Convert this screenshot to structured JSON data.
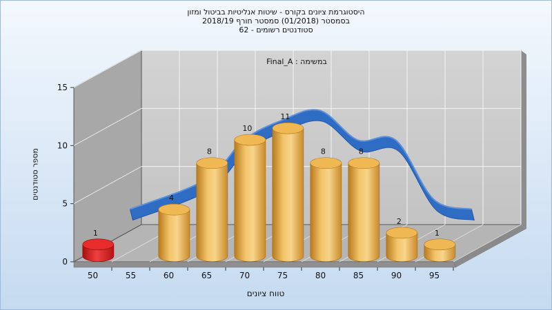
{
  "chart_data": {
    "type": "bar",
    "title": [
      "היסטוגרמת ציונים בקורס - שיטות אנליטיות בביטול ומזון",
      "בסמסטר  (01/2018)  סמסטר חורף 2018/19",
      "סטודנטים רשומים - 62"
    ],
    "annotation": "במשימה : Final_A",
    "xlabel": "טווח ציונים",
    "ylabel": "מספר סטודנטים",
    "x_ticks": [
      "50",
      "55",
      "60",
      "65",
      "70",
      "75",
      "80",
      "85",
      "90",
      "95"
    ],
    "y_ticks": [
      "0",
      "5",
      "10",
      "15"
    ],
    "ylim": [
      0,
      15
    ],
    "categories": [
      "50",
      "60",
      "65",
      "70",
      "75",
      "80",
      "85",
      "90",
      "95"
    ],
    "values": [
      1,
      4,
      8,
      10,
      11,
      8,
      8,
      2,
      1
    ],
    "series": [
      {
        "values": [
          1,
          4,
          8,
          10,
          11,
          8,
          8,
          2,
          1
        ]
      }
    ],
    "trend_curve": true,
    "grid": true,
    "colors": {
      "bar": "#e8a33d",
      "bar_highlight": "#d81818",
      "curve": "#2e6bc4",
      "back_wall": "#c9c9c9",
      "side_wall": "#a6a6a6",
      "floor": "#b3b3b3"
    }
  }
}
